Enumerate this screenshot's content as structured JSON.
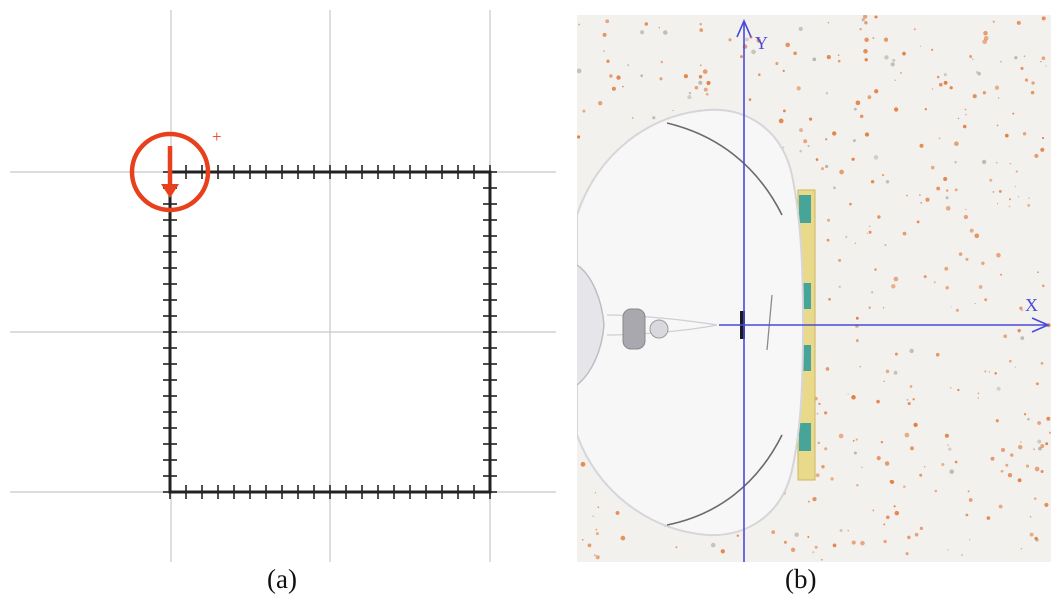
{
  "panel_a": {
    "caption": "(a)",
    "plus_marker": "+",
    "robot_marker": {
      "color": "#e8401c",
      "icon": "down-arrow-in-circle"
    },
    "path_color": "#222222",
    "grid_color": "#c8c8c8"
  },
  "panel_b": {
    "caption": "(b)",
    "axis_x_label": "X",
    "axis_y_label": "Y",
    "axis_color": "#4a4ad8",
    "floor_speckle_color": "#e07a3a",
    "tape_color": "#e9d98a",
    "tape_marker_color": "#2a9a9a"
  }
}
